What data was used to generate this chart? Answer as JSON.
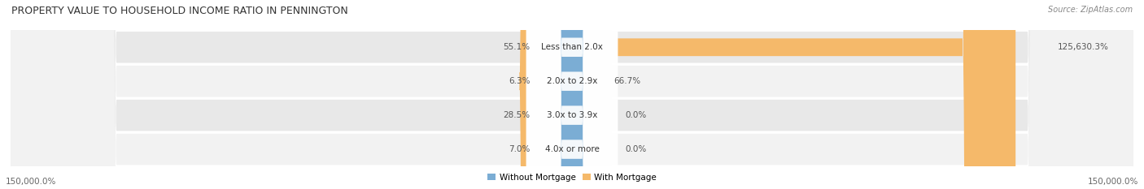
{
  "title": "PROPERTY VALUE TO HOUSEHOLD INCOME RATIO IN PENNINGTON",
  "source": "Source: ZipAtlas.com",
  "categories": [
    "Less than 2.0x",
    "2.0x to 2.9x",
    "3.0x to 3.9x",
    "4.0x or more"
  ],
  "without_mortgage": [
    55.1,
    6.3,
    28.5,
    7.0
  ],
  "with_mortgage": [
    125630.3,
    66.7,
    0.0,
    0.0
  ],
  "without_mortgage_labels": [
    "55.1%",
    "6.3%",
    "28.5%",
    "7.0%"
  ],
  "with_mortgage_labels": [
    "125,630.3%",
    "66.7%",
    "0.0%",
    "0.0%"
  ],
  "color_without": "#7badd4",
  "color_with": "#f5b96a",
  "row_colors": [
    "#e8e8e8",
    "#f2f2f2",
    "#e8e8e8",
    "#f2f2f2"
  ],
  "max_display": 150000.0,
  "x_label_left": "150,000.0%",
  "x_label_right": "150,000.0%",
  "legend_without": "Without Mortgage",
  "legend_with": "With Mortgage",
  "title_fontsize": 9,
  "label_fontsize": 7.5,
  "source_fontsize": 7,
  "cat_fontsize": 7.5
}
